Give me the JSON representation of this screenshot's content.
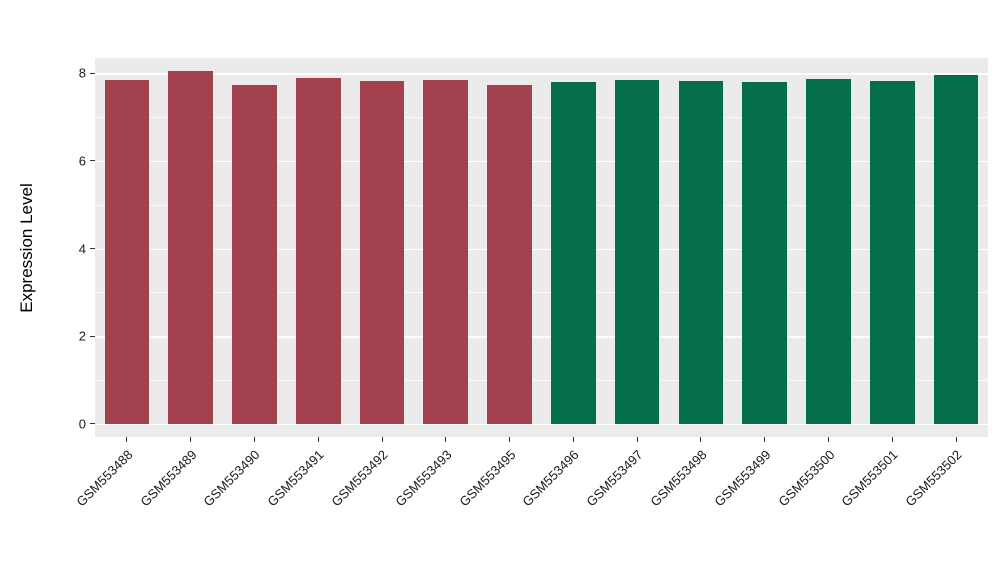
{
  "chart_data": {
    "type": "bar",
    "title": "",
    "xlabel": "",
    "ylabel": "Expression Level",
    "categories": [
      "GSM553488",
      "GSM553489",
      "GSM553490",
      "GSM553491",
      "GSM553492",
      "GSM553493",
      "GSM553495",
      "GSM553496",
      "GSM553497",
      "GSM553498",
      "GSM553499",
      "GSM553500",
      "GSM553501",
      "GSM553502"
    ],
    "values": [
      7.85,
      8.05,
      7.73,
      7.9,
      7.83,
      7.85,
      7.73,
      7.8,
      7.85,
      7.83,
      7.8,
      7.88,
      7.83,
      7.97
    ],
    "groups": [
      {
        "name": "group-1",
        "color": "#A3414F",
        "count": 7
      },
      {
        "name": "group-2",
        "color": "#046E49",
        "count": 7
      }
    ],
    "y_ticks": [
      0,
      2,
      4,
      6,
      8
    ],
    "y_minor_ticks": [
      1,
      3,
      5,
      7
    ],
    "ylim": [
      -0.3,
      8.35
    ],
    "grid": true,
    "legend": "none",
    "panel_bg": "#EBEBEB",
    "grid_color": "#FFFFFF",
    "tick_color": "#333333",
    "bar_width_frac": 0.7
  }
}
